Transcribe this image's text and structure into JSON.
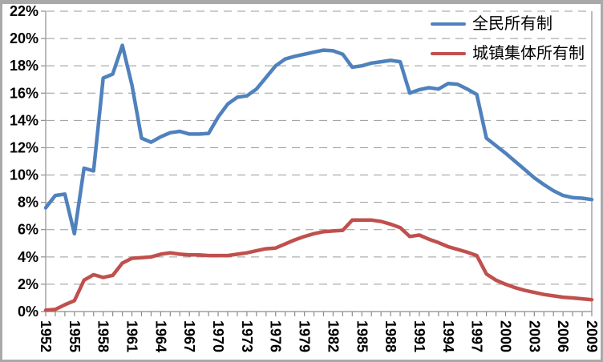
{
  "chart_data": {
    "type": "line",
    "title": "",
    "xlabel": "",
    "ylabel": "",
    "x": [
      1952,
      1953,
      1954,
      1955,
      1956,
      1957,
      1958,
      1959,
      1960,
      1961,
      1962,
      1963,
      1964,
      1965,
      1966,
      1967,
      1968,
      1969,
      1970,
      1971,
      1972,
      1973,
      1974,
      1975,
      1976,
      1977,
      1978,
      1979,
      1980,
      1981,
      1982,
      1983,
      1984,
      1985,
      1986,
      1987,
      1988,
      1989,
      1990,
      1991,
      1992,
      1993,
      1994,
      1995,
      1996,
      1997,
      1998,
      1999,
      2000,
      2001,
      2002,
      2003,
      2004,
      2005,
      2006,
      2007,
      2008,
      2009
    ],
    "series": [
      {
        "name": "全民所有制",
        "key": "state-owned",
        "color": "#4F81BD",
        "values": [
          7.6,
          8.5,
          8.6,
          5.7,
          10.5,
          10.3,
          17.1,
          17.4,
          19.5,
          16.6,
          12.7,
          12.4,
          12.8,
          13.1,
          13.2,
          13.0,
          13.0,
          13.05,
          14.25,
          15.2,
          15.7,
          15.8,
          16.3,
          17.15,
          18.0,
          18.5,
          18.7,
          18.85,
          19.0,
          19.15,
          19.1,
          18.85,
          17.9,
          18.0,
          18.2,
          18.3,
          18.4,
          18.3,
          16.0,
          16.25,
          16.4,
          16.3,
          16.7,
          16.65,
          16.3,
          15.9,
          12.7,
          12.15,
          11.6,
          11.0,
          10.4,
          9.8,
          9.3,
          8.85,
          8.5,
          8.35,
          8.3,
          8.2
        ]
      },
      {
        "name": "城镇集体所有制",
        "key": "urban-collective",
        "color": "#C0504D",
        "values": [
          0.1,
          0.15,
          0.5,
          0.8,
          2.3,
          2.7,
          2.5,
          2.65,
          3.55,
          3.9,
          3.95,
          4.0,
          4.2,
          4.3,
          4.2,
          4.15,
          4.15,
          4.1,
          4.1,
          4.1,
          4.2,
          4.3,
          4.45,
          4.6,
          4.65,
          4.95,
          5.25,
          5.5,
          5.7,
          5.85,
          5.9,
          5.95,
          6.7,
          6.7,
          6.7,
          6.6,
          6.4,
          6.15,
          5.5,
          5.6,
          5.3,
          5.05,
          4.75,
          4.55,
          4.35,
          4.1,
          2.75,
          2.3,
          2.0,
          1.75,
          1.55,
          1.4,
          1.25,
          1.15,
          1.05,
          1.0,
          0.93,
          0.87
        ]
      }
    ],
    "y_axis": {
      "min": 0,
      "max": 22,
      "step": 2,
      "tick_labels": [
        "0%",
        "2%",
        "4%",
        "6%",
        "8%",
        "10%",
        "12%",
        "14%",
        "16%",
        "18%",
        "20%",
        "22%"
      ]
    },
    "x_axis": {
      "tick_every_year": true,
      "label_years": [
        1952,
        1955,
        1958,
        1961,
        1964,
        1967,
        1970,
        1973,
        1976,
        1979,
        1982,
        1985,
        1988,
        1991,
        1994,
        1997,
        2000,
        2003,
        2006,
        2009
      ],
      "label_rotation_deg": 90
    },
    "grid": {
      "horizontal": "dashed",
      "vertical": "none"
    },
    "legend_position": "top-right"
  },
  "style": {
    "background": "#FFFFFF",
    "frame_border_color": "#A9A9A9",
    "axis_color": "#8C8C8C",
    "gridline_color": "#999999",
    "label_color": "#000000",
    "series_line_width": 4.5
  }
}
